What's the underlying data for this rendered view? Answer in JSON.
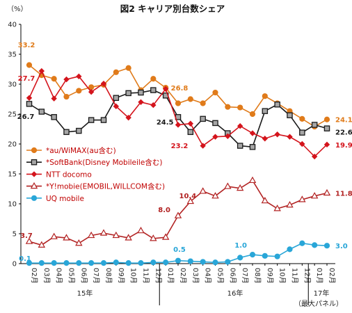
{
  "chart_data": {
    "type": "line",
    "title": "図2 キャリア別台数シェア",
    "ylabel": "（%）",
    "ylim": [
      0,
      40
    ],
    "yticks": [
      0,
      5,
      10,
      15,
      20,
      25,
      30,
      35,
      40
    ],
    "grid": false,
    "legend_position": "middle-left",
    "categories": [
      "02月",
      "03月",
      "04月",
      "05月",
      "06月",
      "07月",
      "08月",
      "09月",
      "10月",
      "11月",
      "12月",
      "01月",
      "02月",
      "03月",
      "04月",
      "05月",
      "06月",
      "07月",
      "08月",
      "09月",
      "10月",
      "11月",
      "12月",
      "01月",
      "02月"
    ],
    "year_labels": [
      "15年",
      "16年",
      "17年"
    ],
    "footer_note": "（最大パネル）",
    "series": [
      {
        "name": "*au/WiMAX(au含む)",
        "color": "#e07b1a",
        "marker": "circle",
        "values": [
          33.2,
          31.5,
          30.9,
          27.9,
          28.9,
          29.5,
          29.9,
          32.0,
          32.7,
          29.0,
          30.9,
          29.4,
          26.8,
          27.5,
          26.8,
          28.6,
          26.2,
          26.1,
          25.0,
          28.0,
          26.8,
          25.5,
          24.2,
          22.9,
          24.1
        ],
        "first_label": "33.2",
        "mid_label": "26.8",
        "last_label": "24.1"
      },
      {
        "name": "*SoftBank(Disney Mobileile含む)",
        "color": "#1a1a1a",
        "marker": "square",
        "values": [
          26.7,
          25.4,
          24.5,
          22.0,
          22.2,
          24.0,
          24.0,
          27.7,
          28.5,
          28.6,
          29.0,
          28.1,
          24.5,
          22.0,
          24.2,
          23.5,
          21.8,
          19.7,
          19.5,
          25.5,
          26.6,
          24.8,
          21.9,
          23.2,
          22.6
        ],
        "first_label": "26.7",
        "mid_label": "24.5",
        "last_label": "22.6"
      },
      {
        "name": "NTT docomo",
        "color": "#d4141c",
        "marker": "diamond",
        "values": [
          27.7,
          32.2,
          27.6,
          30.8,
          31.3,
          28.7,
          30.1,
          26.3,
          24.4,
          27.0,
          26.5,
          29.2,
          23.2,
          23.4,
          19.7,
          21.2,
          21.3,
          23.0,
          21.8,
          20.9,
          21.6,
          21.2,
          20.0,
          17.9,
          19.9
        ],
        "first_label": "27.7",
        "mid_label": "23.2",
        "last_label": "19.9"
      },
      {
        "name": "*Y!mobie(EMOBIL,WILLCOM含む)",
        "color": "#b22222",
        "marker": "triangle",
        "values": [
          3.7,
          3.1,
          4.5,
          4.3,
          3.4,
          4.7,
          5.1,
          4.7,
          4.3,
          5.5,
          4.2,
          4.4,
          8.0,
          10.4,
          12.1,
          11.3,
          12.9,
          12.6,
          13.9,
          10.5,
          9.2,
          9.8,
          10.7,
          11.3,
          11.8
        ],
        "first_label": "3.7",
        "mid_label_a": "8.0",
        "mid_label_b": "10.4",
        "last_label": "11.8"
      },
      {
        "name": "UQ mobile",
        "color": "#29a6d8",
        "marker": "circle",
        "values": [
          0.1,
          0.1,
          0.1,
          0.1,
          0.1,
          0.1,
          0.1,
          0.2,
          0.1,
          0.1,
          0.2,
          0.2,
          0.5,
          0.4,
          0.3,
          0.2,
          0.3,
          1.0,
          1.5,
          1.3,
          1.2,
          2.4,
          3.4,
          3.1,
          3.0
        ],
        "first_label": "0.1",
        "mid_label_a": "0.5",
        "mid_label_b": "1.0",
        "last_label": "3.0"
      }
    ]
  }
}
